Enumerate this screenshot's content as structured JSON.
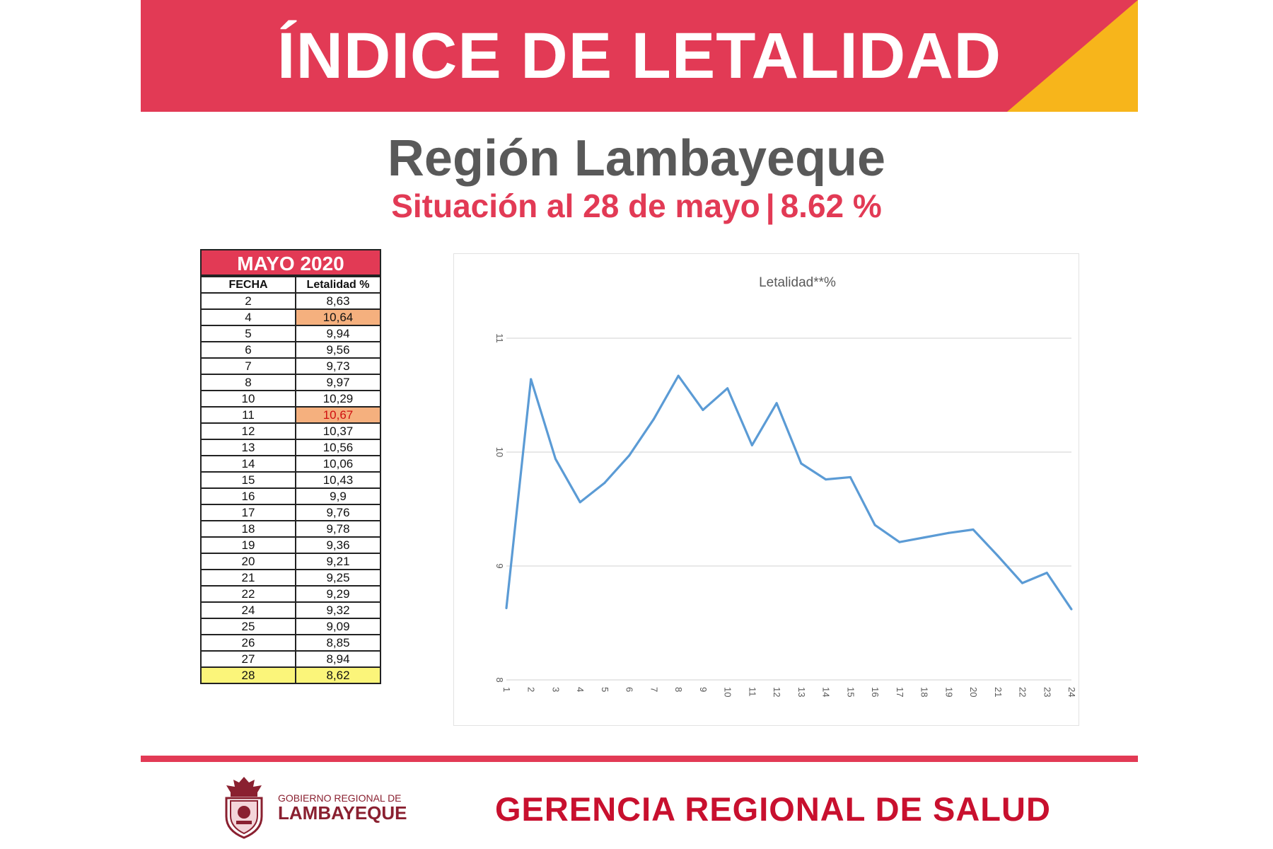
{
  "banner": {
    "title": "ÍNDICE DE LETALIDAD",
    "color": "#e23a55",
    "accent": "#f7b51b"
  },
  "header": {
    "title": "Región Lambayeque",
    "subtitle_left": "Situación al 28 de mayo",
    "subtitle_sep": "|",
    "subtitle_right": "8.62 %"
  },
  "table": {
    "title": "MAYO 2020",
    "col_fecha": "FECHA",
    "col_letalidad": "Letalidad %",
    "rows": [
      {
        "fecha": "2",
        "valor": "8,63",
        "style": ""
      },
      {
        "fecha": "4",
        "valor": "10,64",
        "style": "orange"
      },
      {
        "fecha": "5",
        "valor": "9,94",
        "style": ""
      },
      {
        "fecha": "6",
        "valor": "9,56",
        "style": ""
      },
      {
        "fecha": "7",
        "valor": "9,73",
        "style": ""
      },
      {
        "fecha": "8",
        "valor": "9,97",
        "style": ""
      },
      {
        "fecha": "10",
        "valor": "10,29",
        "style": ""
      },
      {
        "fecha": "11",
        "valor": "10,67",
        "style": "orange-red"
      },
      {
        "fecha": "12",
        "valor": "10,37",
        "style": ""
      },
      {
        "fecha": "13",
        "valor": "10,56",
        "style": ""
      },
      {
        "fecha": "14",
        "valor": "10,06",
        "style": ""
      },
      {
        "fecha": "15",
        "valor": "10,43",
        "style": ""
      },
      {
        "fecha": "16",
        "valor": "9,9",
        "style": ""
      },
      {
        "fecha": "17",
        "valor": "9,76",
        "style": ""
      },
      {
        "fecha": "18",
        "valor": "9,78",
        "style": ""
      },
      {
        "fecha": "19",
        "valor": "9,36",
        "style": ""
      },
      {
        "fecha": "20",
        "valor": "9,21",
        "style": ""
      },
      {
        "fecha": "21",
        "valor": "9,25",
        "style": ""
      },
      {
        "fecha": "22",
        "valor": "9,29",
        "style": ""
      },
      {
        "fecha": "24",
        "valor": "9,32",
        "style": ""
      },
      {
        "fecha": "25",
        "valor": "9,09",
        "style": ""
      },
      {
        "fecha": "26",
        "valor": "8,85",
        "style": ""
      },
      {
        "fecha": "27",
        "valor": "8,94",
        "style": ""
      },
      {
        "fecha": "28",
        "valor": "8,62",
        "style": "yellow"
      }
    ]
  },
  "chart_data": {
    "type": "line",
    "title": "Letalidad**%",
    "x": [
      "1",
      "2",
      "3",
      "4",
      "5",
      "6",
      "7",
      "8",
      "9",
      "10",
      "11",
      "12",
      "13",
      "14",
      "15",
      "16",
      "17",
      "18",
      "19",
      "20",
      "21",
      "22",
      "23",
      "24"
    ],
    "series": [
      {
        "values": [
          8.63,
          10.64,
          9.94,
          9.56,
          9.73,
          9.97,
          10.29,
          10.67,
          10.37,
          10.56,
          10.06,
          10.43,
          9.9,
          9.76,
          9.78,
          9.36,
          9.21,
          9.25,
          9.29,
          9.32,
          9.09,
          8.85,
          8.94,
          8.62
        ],
        "color": "#5b9bd5"
      }
    ],
    "ylim": [
      8,
      11
    ],
    "yticks": [
      "8",
      "9",
      "10",
      "11"
    ],
    "grid": true
  },
  "footer": {
    "logo_line1": "GOBIERNO REGIONAL DE",
    "logo_line2": "LAMBAYEQUE",
    "title": "GERENCIA REGIONAL DE SALUD"
  }
}
